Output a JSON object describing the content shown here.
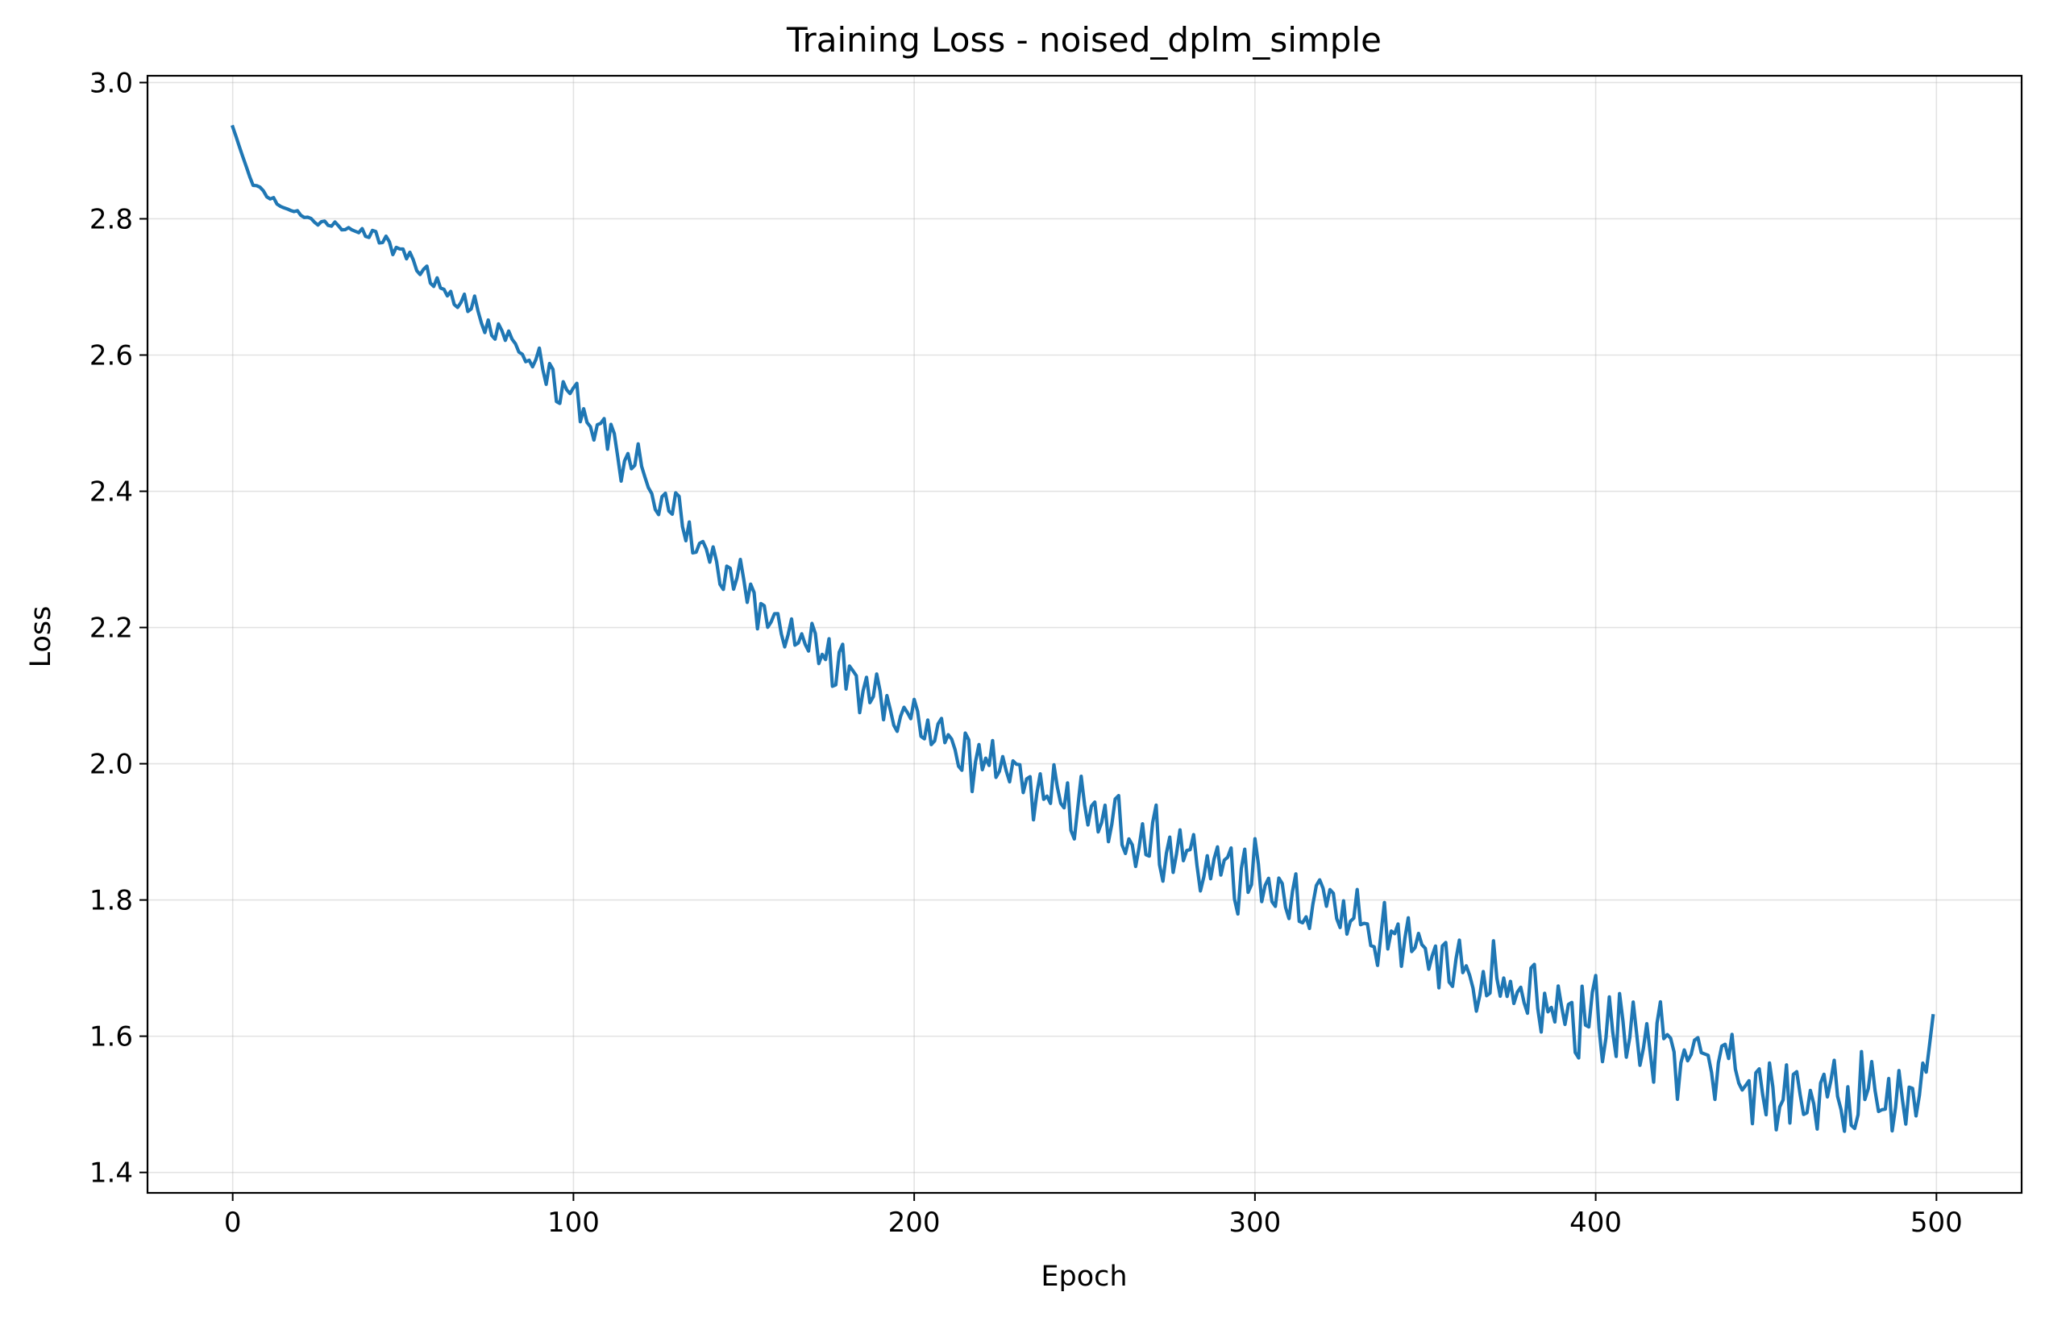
{
  "chart_data": {
    "type": "line",
    "title": "Training Loss - noised_dplm_simple",
    "xlabel": "Epoch",
    "ylabel": "Loss",
    "xlim": [
      -25,
      525
    ],
    "ylim": [
      1.37,
      3.01
    ],
    "xticks": [
      0,
      100,
      200,
      300,
      400,
      500
    ],
    "yticks": [
      1.4,
      1.6,
      1.8,
      2.0,
      2.2,
      2.4,
      2.6,
      2.8,
      3.0
    ],
    "xtick_labels": [
      "0",
      "100",
      "200",
      "300",
      "400",
      "500"
    ],
    "ytick_labels": [
      "1.4",
      "1.6",
      "1.8",
      "2.0",
      "2.2",
      "2.4",
      "2.6",
      "2.8",
      "3.0"
    ],
    "grid": true,
    "legend": "none",
    "series_color": "#1f77b4",
    "series": [
      {
        "x_start": 0,
        "x_step": 5,
        "values": [
          2.935,
          2.86,
          2.832,
          2.818,
          2.805,
          2.795,
          2.79,
          2.785,
          2.775,
          2.768,
          2.75,
          2.73,
          2.705,
          2.69,
          2.665,
          2.645,
          2.625,
          2.605,
          2.58,
          2.555,
          2.535,
          2.505,
          2.48,
          2.45,
          2.42,
          2.39,
          2.365,
          2.335,
          2.305,
          2.28,
          2.255,
          2.235,
          2.21,
          2.19,
          2.175,
          2.155,
          2.13,
          2.11,
          2.095,
          2.08,
          2.065,
          2.045,
          2.03,
          2.015,
          2.0,
          1.99,
          1.975,
          1.965,
          1.95,
          1.94,
          1.928,
          1.916,
          1.905,
          1.895,
          1.885,
          1.875,
          1.865,
          1.855,
          1.845,
          1.835,
          1.825,
          1.815,
          1.805,
          1.795,
          1.785,
          1.775,
          1.765,
          1.755,
          1.745,
          1.735,
          1.725,
          1.715,
          1.705,
          1.695,
          1.685,
          1.675,
          1.665,
          1.655,
          1.645,
          1.635,
          1.625,
          1.615,
          1.605,
          1.595,
          1.585,
          1.575,
          1.565,
          1.555,
          1.545,
          1.535,
          1.525,
          1.518,
          1.512,
          1.508,
          1.505,
          1.505,
          1.508,
          1.512,
          1.515,
          1.52,
          1.63
        ],
        "noise_amplitude": [
          0.0,
          0.006,
          0.005,
          0.005,
          0.005,
          0.005,
          0.006,
          0.008,
          0.01,
          0.012,
          0.015,
          0.018,
          0.02,
          0.022,
          0.024,
          0.026,
          0.028,
          0.03,
          0.032,
          0.034,
          0.035,
          0.036,
          0.037,
          0.038,
          0.038,
          0.039,
          0.04,
          0.04,
          0.041,
          0.041,
          0.042,
          0.042,
          0.043,
          0.043,
          0.044,
          0.044,
          0.045,
          0.045,
          0.046,
          0.046,
          0.047,
          0.047,
          0.048,
          0.048,
          0.049,
          0.05,
          0.05,
          0.051,
          0.051,
          0.052,
          0.052,
          0.053,
          0.053,
          0.054,
          0.054,
          0.055,
          0.055,
          0.055,
          0.056,
          0.056,
          0.056,
          0.057,
          0.057,
          0.057,
          0.058,
          0.058,
          0.058,
          0.059,
          0.059,
          0.059,
          0.06,
          0.06,
          0.06,
          0.061,
          0.061,
          0.061,
          0.062,
          0.062,
          0.062,
          0.063,
          0.063,
          0.063,
          0.064,
          0.064,
          0.064,
          0.065,
          0.065,
          0.065,
          0.066,
          0.066,
          0.066,
          0.066,
          0.066,
          0.066,
          0.066,
          0.066,
          0.066,
          0.066,
          0.066,
          0.066,
          0.0
        ]
      }
    ]
  }
}
